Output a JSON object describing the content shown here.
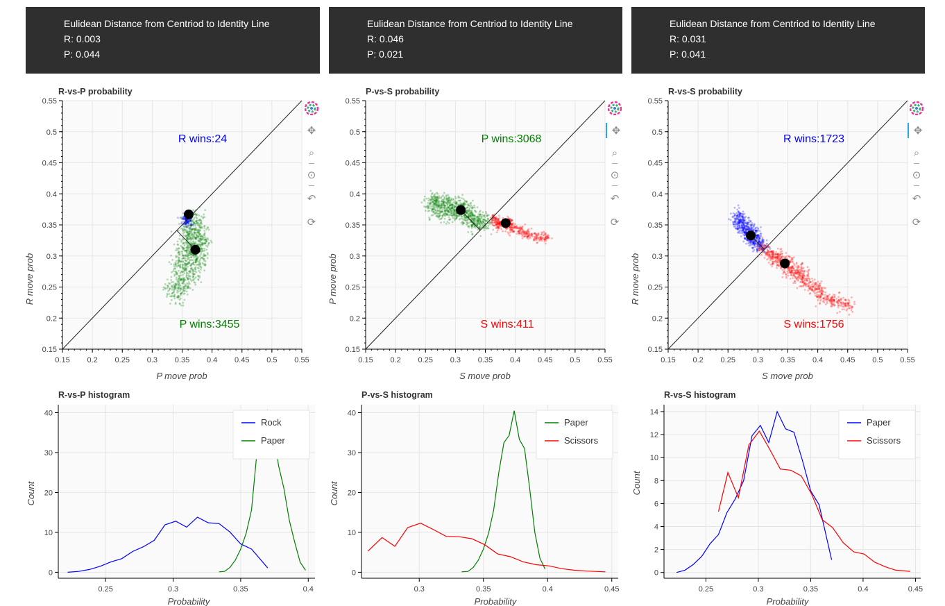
{
  "panels": [
    {
      "info": {
        "title": "Eulidean Distance from Centriod to Identity Line",
        "line1": "R: 0.003",
        "line2": "P: 0.044"
      },
      "scatter": {
        "title": "R-vs-P probability",
        "xlabel": "P move prob",
        "ylabel": "R move prob",
        "top_label": "R wins:24",
        "top_color": "#0000ff",
        "bottom_label": "P wins:3455",
        "bottom_color": "#008000"
      },
      "hist": {
        "title": "R-vs-P histogram",
        "xlabel": "Probability",
        "ylabel": "Count"
      }
    },
    {
      "info": {
        "title": "Eulidean Distance from Centriod to Identity Line",
        "line1": "R: 0.046",
        "line2": "P: 0.021"
      },
      "scatter": {
        "title": "P-vs-S probability",
        "xlabel": "S move prob",
        "ylabel": "P move prob",
        "top_label": "P wins:3068",
        "top_color": "#008000",
        "bottom_label": "S wins:411",
        "bottom_color": "#ff0000"
      },
      "hist": {
        "title": "P-vs-S histogram",
        "xlabel": "Probability",
        "ylabel": "Count"
      }
    },
    {
      "info": {
        "title": "Eulidean Distance from Centriod to Identity Line",
        "line1": "R: 0.031",
        "line2": "P: 0.041"
      },
      "scatter": {
        "title": "R-vs-S probability",
        "xlabel": "S move prob",
        "ylabel": "R move prob",
        "top_label": "R wins:1723",
        "top_color": "#0000ff",
        "bottom_label": "S wins:1756",
        "bottom_color": "#ff0000"
      },
      "hist": {
        "title": "R-vs-S histogram",
        "xlabel": "Probability",
        "ylabel": "Count"
      }
    }
  ],
  "toolbar": {
    "icons": [
      "bokeh-logo-icon",
      "pan-icon",
      "box-zoom-icon",
      "wheel-zoom-icon",
      "reset-icon",
      "refresh-icon"
    ]
  },
  "chart_data": [
    {
      "type": "scatter",
      "title": "R-vs-P probability",
      "xlabel": "P move prob",
      "ylabel": "R move prob",
      "xlim": [
        0.15,
        0.55
      ],
      "ylim": [
        0.15,
        0.55
      ],
      "ticks": [
        "0.15",
        "0.2",
        "0.25",
        "0.3",
        "0.35",
        "0.4",
        "0.45",
        "0.5",
        "0.55"
      ],
      "identity_line": true,
      "clouds": [
        {
          "color": "#008000",
          "points": [
            [
              0.335,
              0.25
            ],
            [
              0.345,
              0.28
            ],
            [
              0.355,
              0.31
            ],
            [
              0.36,
              0.33
            ],
            [
              0.365,
              0.35
            ],
            [
              0.372,
              0.36
            ],
            [
              0.38,
              0.345
            ],
            [
              0.385,
              0.32
            ],
            [
              0.38,
              0.29
            ],
            [
              0.37,
              0.27
            ],
            [
              0.36,
              0.26
            ],
            [
              0.35,
              0.3
            ],
            [
              0.365,
              0.315
            ],
            [
              0.375,
              0.33
            ],
            [
              0.37,
              0.3
            ],
            [
              0.355,
              0.285
            ],
            [
              0.345,
              0.255
            ],
            [
              0.34,
              0.235
            ],
            [
              0.377,
              0.31
            ],
            [
              0.362,
              0.34
            ]
          ],
          "spread": 0.008
        },
        {
          "color": "#0000ff",
          "points": [
            [
              0.36,
              0.355
            ],
            [
              0.355,
              0.36
            ]
          ],
          "spread": 0.004
        }
      ],
      "centroid": [
        0.372,
        0.31
      ],
      "projection": [
        0.361,
        0.367
      ],
      "annotations": [
        "R wins:24",
        "P wins:3455"
      ]
    },
    {
      "type": "scatter",
      "title": "P-vs-S probability",
      "xlabel": "S move prob",
      "ylabel": "P move prob",
      "xlim": [
        0.15,
        0.55
      ],
      "ylim": [
        0.15,
        0.55
      ],
      "ticks": [
        "0.15",
        "0.2",
        "0.25",
        "0.3",
        "0.35",
        "0.4",
        "0.45",
        "0.5",
        "0.55"
      ],
      "identity_line": true,
      "clouds": [
        {
          "color": "#008000",
          "points": [
            [
              0.26,
              0.38
            ],
            [
              0.27,
              0.385
            ],
            [
              0.28,
              0.38
            ],
            [
              0.29,
              0.375
            ],
            [
              0.3,
              0.375
            ],
            [
              0.31,
              0.37
            ],
            [
              0.32,
              0.365
            ],
            [
              0.33,
              0.36
            ],
            [
              0.34,
              0.36
            ],
            [
              0.35,
              0.355
            ],
            [
              0.275,
              0.37
            ],
            [
              0.295,
              0.365
            ],
            [
              0.315,
              0.375
            ],
            [
              0.265,
              0.39
            ],
            [
              0.305,
              0.385
            ],
            [
              0.325,
              0.355
            ],
            [
              0.285,
              0.39
            ],
            [
              0.34,
              0.35
            ]
          ],
          "spread": 0.007
        },
        {
          "color": "#ff0000",
          "points": [
            [
              0.365,
              0.36
            ],
            [
              0.375,
              0.355
            ],
            [
              0.385,
              0.35
            ],
            [
              0.395,
              0.345
            ],
            [
              0.41,
              0.34
            ],
            [
              0.42,
              0.335
            ],
            [
              0.435,
              0.33
            ],
            [
              0.45,
              0.33
            ],
            [
              0.37,
              0.35
            ],
            [
              0.39,
              0.355
            ]
          ],
          "spread": 0.004
        }
      ],
      "centroid": [
        0.309,
        0.374
      ],
      "projection": [
        0.384,
        0.353
      ],
      "annotations": [
        "P wins:3068",
        "S wins:411"
      ]
    },
    {
      "type": "scatter",
      "title": "R-vs-S probability",
      "xlabel": "S move prob",
      "ylabel": "R move prob",
      "xlim": [
        0.15,
        0.55
      ],
      "ylim": [
        0.15,
        0.55
      ],
      "ticks": [
        "0.15",
        "0.2",
        "0.25",
        "0.3",
        "0.35",
        "0.4",
        "0.45",
        "0.5",
        "0.55"
      ],
      "identity_line": true,
      "clouds": [
        {
          "color": "#0000ff",
          "points": [
            [
              0.265,
              0.36
            ],
            [
              0.27,
              0.35
            ],
            [
              0.275,
              0.345
            ],
            [
              0.28,
              0.34
            ],
            [
              0.285,
              0.335
            ],
            [
              0.29,
              0.33
            ],
            [
              0.295,
              0.325
            ],
            [
              0.3,
              0.32
            ],
            [
              0.305,
              0.315
            ],
            [
              0.27,
              0.365
            ],
            [
              0.28,
              0.35
            ],
            [
              0.29,
              0.34
            ],
            [
              0.3,
              0.33
            ]
          ],
          "spread": 0.006
        },
        {
          "color": "#ff0000",
          "points": [
            [
              0.31,
              0.31
            ],
            [
              0.32,
              0.3
            ],
            [
              0.33,
              0.295
            ],
            [
              0.34,
              0.29
            ],
            [
              0.35,
              0.28
            ],
            [
              0.36,
              0.275
            ],
            [
              0.37,
              0.265
            ],
            [
              0.38,
              0.26
            ],
            [
              0.39,
              0.25
            ],
            [
              0.4,
              0.245
            ],
            [
              0.41,
              0.235
            ],
            [
              0.42,
              0.23
            ],
            [
              0.435,
              0.225
            ],
            [
              0.45,
              0.22
            ],
            [
              0.33,
              0.3
            ],
            [
              0.35,
              0.29
            ],
            [
              0.37,
              0.275
            ]
          ],
          "spread": 0.006
        }
      ],
      "centroid": [
        0.288,
        0.333
      ],
      "projection": [
        0.345,
        0.288
      ],
      "annotations": [
        "R wins:1723",
        "S wins:1756"
      ]
    },
    {
      "type": "line",
      "title": "R-vs-P histogram",
      "xlabel": "Probability",
      "ylabel": "Count",
      "xlim": [
        0.215,
        0.405
      ],
      "ylim": [
        -1.5,
        42
      ],
      "xticks": [
        "0.25",
        "0.3",
        "0.35",
        "0.4"
      ],
      "yticks": [
        "0",
        "10",
        "20",
        "30",
        "40"
      ],
      "legend_position": "top-right",
      "series": [
        {
          "name": "Rock",
          "color": "#0000ff",
          "points": [
            [
              0.222,
              0
            ],
            [
              0.23,
              0.2
            ],
            [
              0.238,
              0.7
            ],
            [
              0.246,
              1.5
            ],
            [
              0.254,
              2.6
            ],
            [
              0.262,
              3.4
            ],
            [
              0.27,
              5.2
            ],
            [
              0.278,
              6.4
            ],
            [
              0.286,
              8
            ],
            [
              0.294,
              11.9
            ],
            [
              0.302,
              12.8
            ],
            [
              0.31,
              11.3
            ],
            [
              0.318,
              13.8
            ],
            [
              0.326,
              12.4
            ],
            [
              0.334,
              12.2
            ],
            [
              0.342,
              10.1
            ],
            [
              0.35,
              7.1
            ],
            [
              0.358,
              5.8
            ],
            [
              0.37,
              1.1
            ]
          ]
        },
        {
          "name": "Paper",
          "color": "#008000",
          "points": [
            [
              0.334,
              0.1
            ],
            [
              0.338,
              0.2
            ],
            [
              0.342,
              1.2
            ],
            [
              0.346,
              3
            ],
            [
              0.35,
              5.8
            ],
            [
              0.354,
              9.7
            ],
            [
              0.358,
              15.6
            ],
            [
              0.362,
              30
            ],
            [
              0.366,
              35.1
            ],
            [
              0.37,
              40.5
            ],
            [
              0.374,
              36.1
            ],
            [
              0.378,
              26.8
            ],
            [
              0.382,
              21
            ],
            [
              0.386,
              13
            ],
            [
              0.39,
              7.5
            ],
            [
              0.394,
              2.5
            ],
            [
              0.398,
              0.5
            ]
          ]
        }
      ]
    },
    {
      "type": "line",
      "title": "P-vs-S histogram",
      "xlabel": "Probability",
      "ylabel": "Count",
      "xlim": [
        0.255,
        0.455
      ],
      "ylim": [
        -1.5,
        42
      ],
      "xticks": [
        "0.3",
        "0.35",
        "0.4",
        "0.45"
      ],
      "yticks": [
        "0",
        "10",
        "20",
        "30",
        "40"
      ],
      "legend_position": "top-right",
      "series": [
        {
          "name": "Paper",
          "color": "#008000",
          "points": [
            [
              0.333,
              0.1
            ],
            [
              0.338,
              0.2
            ],
            [
              0.342,
              1.2
            ],
            [
              0.346,
              3
            ],
            [
              0.35,
              5.8
            ],
            [
              0.354,
              9.7
            ],
            [
              0.358,
              15.6
            ],
            [
              0.362,
              25
            ],
            [
              0.366,
              32.5
            ],
            [
              0.37,
              34.3
            ],
            [
              0.374,
              40.5
            ],
            [
              0.378,
              33.3
            ],
            [
              0.382,
              31
            ],
            [
              0.386,
              21
            ],
            [
              0.39,
              10
            ],
            [
              0.394,
              3.5
            ],
            [
              0.398,
              0.8
            ]
          ]
        },
        {
          "name": "Scissors",
          "color": "#ff0000",
          "points": [
            [
              0.26,
              5.3
            ],
            [
              0.271,
              8.7
            ],
            [
              0.281,
              6.5
            ],
            [
              0.291,
              11.2
            ],
            [
              0.301,
              12.3
            ],
            [
              0.311,
              10.7
            ],
            [
              0.321,
              9
            ],
            [
              0.331,
              8.9
            ],
            [
              0.341,
              8.4
            ],
            [
              0.351,
              6.9
            ],
            [
              0.361,
              4.6
            ],
            [
              0.371,
              3.9
            ],
            [
              0.381,
              2.6
            ],
            [
              0.391,
              1.9
            ],
            [
              0.401,
              1.6
            ],
            [
              0.411,
              0.9
            ],
            [
              0.421,
              0.5
            ],
            [
              0.431,
              0.3
            ],
            [
              0.445,
              0.1
            ]
          ]
        }
      ]
    },
    {
      "type": "line",
      "title": "R-vs-S histogram",
      "xlabel": "Probability",
      "ylabel": "Count",
      "xlim": [
        0.21,
        0.455
      ],
      "ylim": [
        -0.5,
        14.6
      ],
      "xticks": [
        "0.25",
        "0.3",
        "0.35",
        "0.4",
        "0.45"
      ],
      "yticks": [
        "0",
        "2",
        "4",
        "6",
        "8",
        "10",
        "12",
        "14"
      ],
      "legend_position": "top-right",
      "series": [
        {
          "name": "Paper",
          "color": "#0000ff",
          "points": [
            [
              0.222,
              0
            ],
            [
              0.23,
              0.2
            ],
            [
              0.238,
              0.7
            ],
            [
              0.246,
              1.4
            ],
            [
              0.254,
              2.5
            ],
            [
              0.262,
              3.3
            ],
            [
              0.27,
              5.2
            ],
            [
              0.278,
              6.4
            ],
            [
              0.286,
              8
            ],
            [
              0.294,
              11.9
            ],
            [
              0.302,
              12.8
            ],
            [
              0.31,
              11.3
            ],
            [
              0.318,
              14
            ],
            [
              0.326,
              12.5
            ],
            [
              0.334,
              12.2
            ],
            [
              0.342,
              9.8
            ],
            [
              0.35,
              7.1
            ],
            [
              0.358,
              5.9
            ],
            [
              0.37,
              1.1
            ]
          ]
        },
        {
          "name": "Scissors",
          "color": "#ff0000",
          "points": [
            [
              0.262,
              5.3
            ],
            [
              0.271,
              8.7
            ],
            [
              0.281,
              6.5
            ],
            [
              0.291,
              11.1
            ],
            [
              0.301,
              12.3
            ],
            [
              0.311,
              10.7
            ],
            [
              0.321,
              9
            ],
            [
              0.331,
              8.9
            ],
            [
              0.341,
              8.4
            ],
            [
              0.351,
              6.8
            ],
            [
              0.361,
              4.6
            ],
            [
              0.371,
              3.9
            ],
            [
              0.381,
              2.6
            ],
            [
              0.391,
              1.8
            ],
            [
              0.401,
              1.6
            ],
            [
              0.411,
              0.9
            ],
            [
              0.421,
              0.5
            ],
            [
              0.431,
              0.2
            ],
            [
              0.445,
              0.1
            ]
          ]
        }
      ]
    }
  ]
}
